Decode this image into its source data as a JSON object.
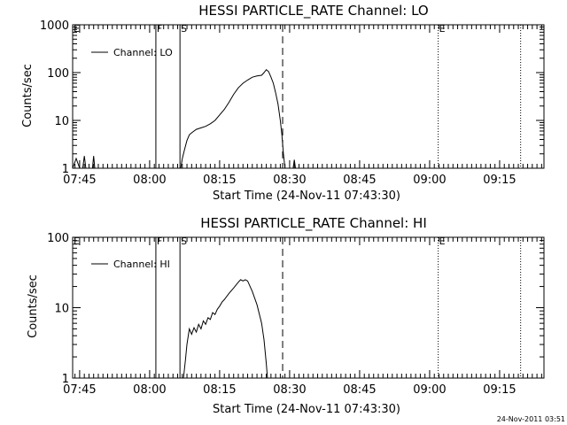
{
  "footer": {
    "timestamp": "24-Nov-2011 03:51"
  },
  "chart_data": [
    {
      "type": "line",
      "title": "HESSI PARTICLE_RATE Channel: LO",
      "xlabel": "Start Time (24-Nov-11 07:43:30)",
      "ylabel": "Counts/sec",
      "yscale": "log",
      "ylim": [
        1,
        1000
      ],
      "y_tick_labels": [
        "1",
        "10",
        "100",
        "1000"
      ],
      "xlim": [
        "07:43:30",
        "09:24:30"
      ],
      "x_tick_labels": [
        "07:45",
        "08:00",
        "08:15",
        "08:30",
        "08:45",
        "09:00",
        "09:15"
      ],
      "legend": {
        "position": "top-left",
        "entries": [
          "Channel: LO"
        ]
      },
      "markers": [
        {
          "label": "E",
          "time": "07:43:30",
          "style": "none"
        },
        {
          "label": "F",
          "time": "08:01:20",
          "style": "solid"
        },
        {
          "label": "S",
          "time": "08:06:30",
          "style": "solid"
        },
        {
          "label": "",
          "time": "08:28:30",
          "style": "dashed"
        },
        {
          "label": "E",
          "time": "09:01:50",
          "style": "dotted"
        },
        {
          "label": "",
          "time": "09:19:30",
          "style": "dotted"
        }
      ],
      "series": [
        {
          "name": "Channel: LO",
          "segments": [
            [
              [
                "07:43:30",
                1
              ],
              [
                "07:44:15",
                1.6
              ],
              [
                "07:45:00",
                1
              ]
            ],
            [
              [
                "07:45:40",
                1
              ],
              [
                "07:46:00",
                1.8
              ],
              [
                "07:46:20",
                1
              ]
            ],
            [
              [
                "07:47:45",
                1
              ],
              [
                "07:48:00",
                1.8
              ],
              [
                "07:48:15",
                1
              ]
            ],
            [
              [
                "08:06:40",
                1
              ],
              [
                "08:07:00",
                1.6
              ],
              [
                "08:07:30",
                2.5
              ],
              [
                "08:08:00",
                3.8
              ],
              [
                "08:08:30",
                5
              ],
              [
                "08:09:00",
                5.5
              ],
              [
                "08:09:30",
                6
              ],
              [
                "08:10:00",
                6.5
              ],
              [
                "08:11:00",
                7
              ],
              [
                "08:12:00",
                7.5
              ],
              [
                "08:13:00",
                8.5
              ],
              [
                "08:14:00",
                10
              ],
              [
                "08:15:00",
                13
              ],
              [
                "08:16:00",
                17
              ],
              [
                "08:17:00",
                24
              ],
              [
                "08:18:00",
                35
              ],
              [
                "08:19:00",
                48
              ],
              [
                "08:20:00",
                60
              ],
              [
                "08:21:00",
                70
              ],
              [
                "08:22:00",
                80
              ],
              [
                "08:23:00",
                85
              ],
              [
                "08:24:00",
                88
              ],
              [
                "08:24:30",
                100
              ],
              [
                "08:25:00",
                115
              ],
              [
                "08:25:30",
                105
              ],
              [
                "08:26:00",
                80
              ],
              [
                "08:26:30",
                60
              ],
              [
                "08:27:00",
                38
              ],
              [
                "08:27:30",
                22
              ],
              [
                "08:28:00",
                10
              ],
              [
                "08:28:20",
                5
              ],
              [
                "08:28:40",
                2
              ],
              [
                "08:29:00",
                1
              ]
            ],
            [
              [
                "08:30:45",
                1
              ],
              [
                "08:31:00",
                1.5
              ],
              [
                "08:31:15",
                1
              ]
            ]
          ]
        }
      ]
    },
    {
      "type": "line",
      "title": "HESSI PARTICLE_RATE Channel: HI",
      "xlabel": "Start Time (24-Nov-11 07:43:30)",
      "ylabel": "Counts/sec",
      "yscale": "log",
      "ylim": [
        1,
        100
      ],
      "y_tick_labels": [
        "1",
        "10",
        "100"
      ],
      "xlim": [
        "07:43:30",
        "09:24:30"
      ],
      "x_tick_labels": [
        "07:45",
        "08:00",
        "08:15",
        "08:30",
        "08:45",
        "09:00",
        "09:15"
      ],
      "legend": {
        "position": "top-left",
        "entries": [
          "Channel: HI"
        ]
      },
      "markers": [
        {
          "label": "E",
          "time": "07:43:30",
          "style": "none"
        },
        {
          "label": "F",
          "time": "08:01:20",
          "style": "solid"
        },
        {
          "label": "S",
          "time": "08:06:30",
          "style": "solid"
        },
        {
          "label": "",
          "time": "08:28:30",
          "style": "dashed"
        },
        {
          "label": "E",
          "time": "09:01:50",
          "style": "dotted"
        },
        {
          "label": "",
          "time": "09:19:30",
          "style": "dotted"
        }
      ],
      "series": [
        {
          "name": "Channel: HI",
          "segments": [
            [
              [
                "08:07:15",
                1
              ],
              [
                "08:07:40",
                1.8
              ],
              [
                "08:08:00",
                3
              ],
              [
                "08:08:30",
                5
              ],
              [
                "08:09:00",
                4.2
              ],
              [
                "08:09:30",
                5.2
              ],
              [
                "08:10:00",
                4.5
              ],
              [
                "08:10:30",
                5.8
              ],
              [
                "08:11:00",
                5
              ],
              [
                "08:11:30",
                6.5
              ],
              [
                "08:12:00",
                5.8
              ],
              [
                "08:12:30",
                7.2
              ],
              [
                "08:13:00",
                6.8
              ],
              [
                "08:13:30",
                8.5
              ],
              [
                "08:14:00",
                8
              ],
              [
                "08:14:30",
                9.5
              ],
              [
                "08:15:00",
                10.5
              ],
              [
                "08:15:30",
                12
              ],
              [
                "08:16:00",
                13
              ],
              [
                "08:17:00",
                16
              ],
              [
                "08:18:00",
                19
              ],
              [
                "08:19:00",
                23
              ],
              [
                "08:19:30",
                25
              ],
              [
                "08:20:00",
                24
              ],
              [
                "08:20:30",
                25
              ],
              [
                "08:21:00",
                24
              ],
              [
                "08:22:00",
                17
              ],
              [
                "08:23:00",
                11
              ],
              [
                "08:24:00",
                6
              ],
              [
                "08:24:30",
                3.5
              ],
              [
                "08:25:00",
                1.6
              ],
              [
                "08:25:15",
                1
              ]
            ]
          ]
        }
      ]
    }
  ]
}
